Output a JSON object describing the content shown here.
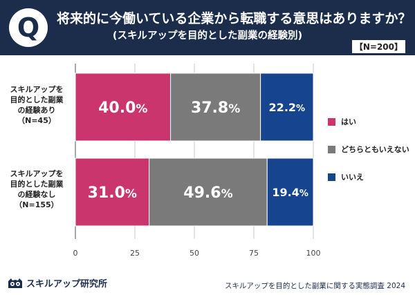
{
  "header": {
    "q_label": "Q",
    "title": "将来的に今働いている企業から転職する意思はありますか？",
    "subtitle": "(スキルアップを目的とした副業の経験別)",
    "n_total": "【N=200】"
  },
  "rows": [
    {
      "label_lines": [
        "スキルアップを",
        "目的とした副業",
        "の経験あり",
        "（N=45）"
      ]
    },
    {
      "label_lines": [
        "スキルアップを",
        "目的とした副業",
        "の経験なし",
        "（N=155）"
      ]
    }
  ],
  "chart_data": {
    "type": "bar",
    "orientation": "horizontal",
    "stacked": true,
    "title": "将来的に今働いている企業から転職する意思はありますか？",
    "categories": [
      "スキルアップを目的とした副業の経験あり（N=45）",
      "スキルアップを目的とした副業の経験なし（N=155）"
    ],
    "series": [
      {
        "name": "はい",
        "values": [
          40.0,
          31.0
        ],
        "color": "#c9356c"
      },
      {
        "name": "どちらともいえない",
        "values": [
          37.8,
          49.6
        ],
        "color": "#7a7a7a"
      },
      {
        "name": "いいえ",
        "values": [
          22.2,
          19.4
        ],
        "color": "#16448f"
      }
    ],
    "value_labels": [
      [
        "40.0",
        "37.8",
        "22.2"
      ],
      [
        "31.0",
        "49.6",
        "19.4"
      ]
    ],
    "percent_sign": "%",
    "xlim": [
      0,
      100
    ],
    "xticks": [
      "0",
      "25",
      "50",
      "75",
      "100"
    ],
    "xlabel": "",
    "ylabel": "",
    "grid": true,
    "legend": "right"
  },
  "footer": {
    "logo_text": "スキルアップ研究所",
    "source": "スキルアップを目的とした副業に関する実態調査 2024"
  }
}
